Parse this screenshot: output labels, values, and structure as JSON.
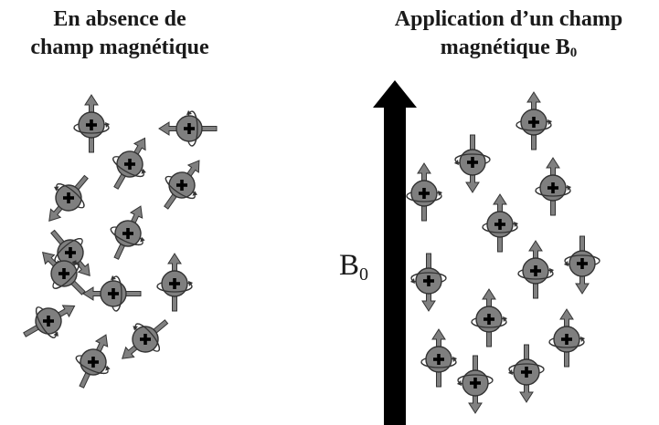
{
  "left_panel": {
    "title_line1": "En absence de",
    "title_line2": "champ magnétique"
  },
  "right_panel": {
    "title_line1": "Application d’un champ",
    "title_line2_main": "magnétique B",
    "title_line2_sub": "0"
  },
  "field": {
    "label_main": "B",
    "label_sub": "0",
    "direction": "up"
  },
  "colors": {
    "proton_fill": "#7f7f7f",
    "outline": "#333333",
    "spin_arrow": "#808080",
    "field_arrow": "#000000"
  },
  "protons_random": [
    {
      "id": "r1",
      "angle": 0
    },
    {
      "id": "r2",
      "angle": -90
    },
    {
      "id": "r3",
      "angle": 30
    },
    {
      "id": "r4",
      "angle": 35
    },
    {
      "id": "r5",
      "angle": -140
    },
    {
      "id": "r6",
      "angle": 25
    },
    {
      "id": "r7",
      "angle": 140
    },
    {
      "id": "r8",
      "angle": -90
    },
    {
      "id": "r9",
      "angle": 0
    },
    {
      "id": "r10",
      "angle": 60
    },
    {
      "id": "r11",
      "angle": -130
    },
    {
      "id": "r12",
      "angle": 25
    },
    {
      "id": "r13",
      "angle": -45
    }
  ],
  "protons_aligned": [
    {
      "id": "a1",
      "spin": "up"
    },
    {
      "id": "a2",
      "spin": "down"
    },
    {
      "id": "a3",
      "spin": "up"
    },
    {
      "id": "a4",
      "spin": "up"
    },
    {
      "id": "a5",
      "spin": "up"
    },
    {
      "id": "a6",
      "spin": "down"
    },
    {
      "id": "a7",
      "spin": "up"
    },
    {
      "id": "a8",
      "spin": "down"
    },
    {
      "id": "a9",
      "spin": "up"
    },
    {
      "id": "a10",
      "spin": "up"
    },
    {
      "id": "a11",
      "spin": "up"
    },
    {
      "id": "a12",
      "spin": "down"
    },
    {
      "id": "a13",
      "spin": "down"
    }
  ]
}
